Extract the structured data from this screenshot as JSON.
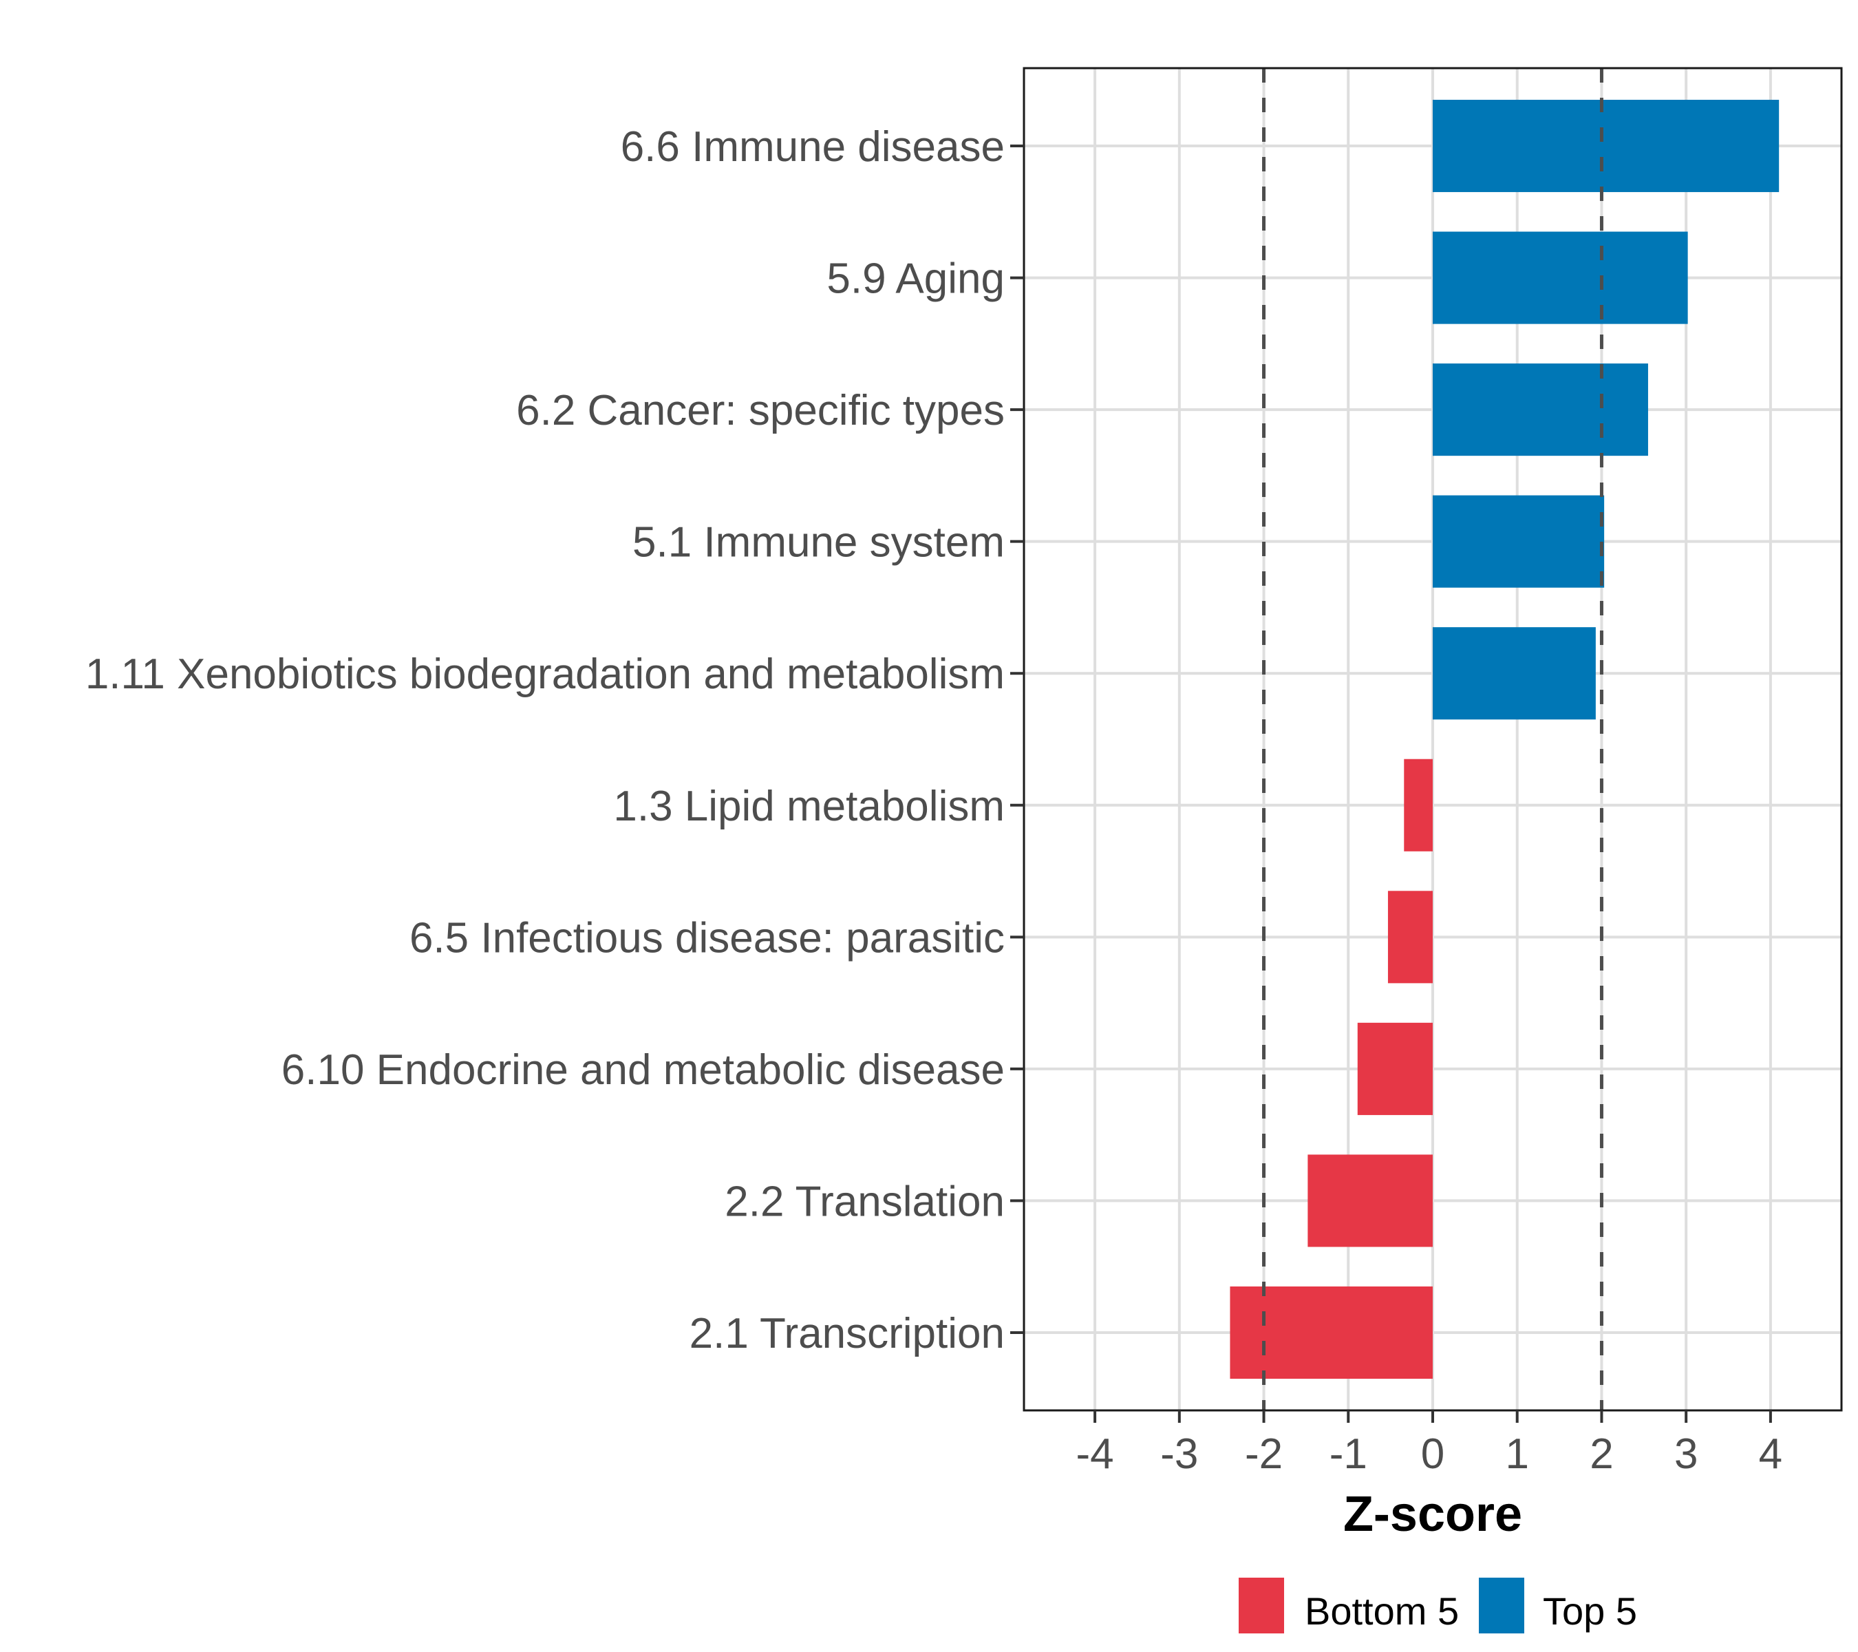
{
  "chart_data": {
    "type": "bar",
    "orientation": "horizontal",
    "title": "",
    "xlabel": "Z-score",
    "ylabel": "",
    "xlim": [
      -4.84,
      4.84
    ],
    "xticks": [
      -4,
      -3,
      -2,
      -1,
      0,
      1,
      2,
      3,
      4
    ],
    "xtick_labels": [
      "-4",
      "-3",
      "-2",
      "-1",
      "0",
      "1",
      "2",
      "3",
      "4"
    ],
    "grid": true,
    "reference_lines": [
      {
        "axis": "x",
        "value": -2,
        "style": "dashed"
      },
      {
        "axis": "x",
        "value": 2,
        "style": "dashed"
      }
    ],
    "categories": [
      "6.6 Immune disease",
      "5.9 Aging",
      "6.2 Cancer: specific types",
      "5.1 Immune system",
      "1.11 Xenobiotics biodegradation and metabolism",
      "1.3 Lipid metabolism",
      "6.5 Infectious disease: parasitic",
      "6.10 Endocrine and metabolic disease",
      "2.2 Translation",
      "2.1 Transcription"
    ],
    "values": [
      4.1,
      3.02,
      2.55,
      2.03,
      1.93,
      -0.34,
      -0.53,
      -0.89,
      -1.48,
      -2.4
    ],
    "groups": [
      "Top 5",
      "Top 5",
      "Top 5",
      "Top 5",
      "Top 5",
      "Bottom 5",
      "Bottom 5",
      "Bottom 5",
      "Bottom 5",
      "Bottom 5"
    ],
    "legend": {
      "placement": "bottom",
      "entries": [
        {
          "label": "Bottom 5",
          "color": "#e63746"
        },
        {
          "label": "Top 5",
          "color": "#0077b6"
        }
      ]
    },
    "colors": {
      "Top 5": "#0077b6",
      "Bottom 5": "#e63746"
    }
  }
}
